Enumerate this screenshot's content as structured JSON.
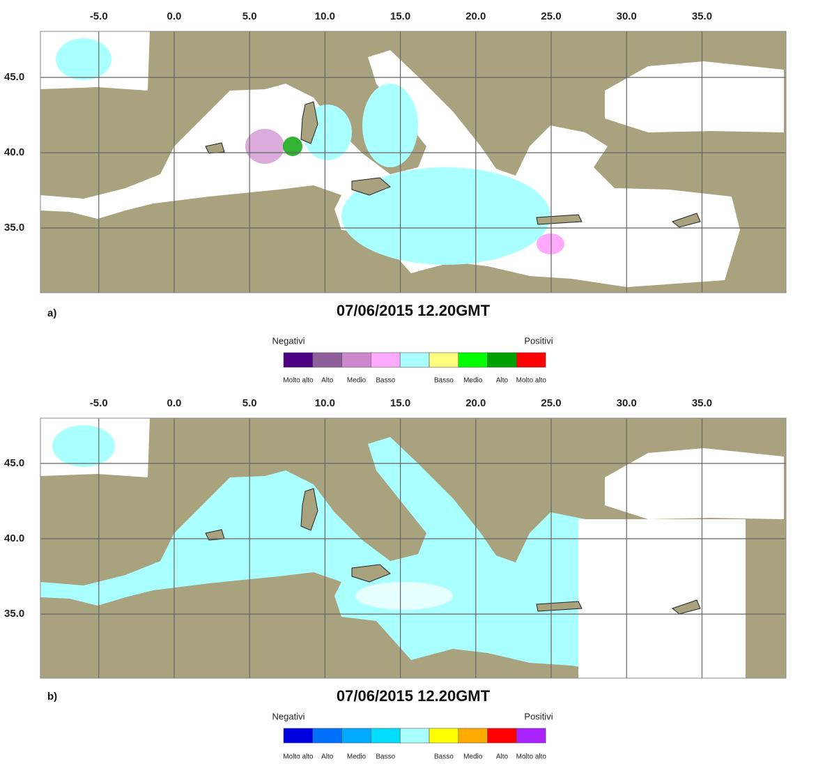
{
  "panels": [
    {
      "label": "a)",
      "title": "07/06/2015 12.20GMT",
      "xlim": [
        -8.87,
        40.57
      ],
      "ylim": [
        30.7,
        48.06
      ],
      "xticks": [
        {
          "value": -5,
          "label": "-5.0"
        },
        {
          "value": 0,
          "label": "0.0"
        },
        {
          "value": 5,
          "label": "5.0"
        },
        {
          "value": 10,
          "label": "10.0"
        },
        {
          "value": 15,
          "label": "15.0"
        },
        {
          "value": 20,
          "label": "20.0"
        },
        {
          "value": 25,
          "label": "25.0"
        },
        {
          "value": 30,
          "label": "30.0"
        },
        {
          "value": 35,
          "label": "35.0"
        }
      ],
      "yticks": [
        {
          "value": 35,
          "label": "35.0"
        },
        {
          "value": 40,
          "label": "40.0"
        },
        {
          "value": 45,
          "label": "45.0"
        }
      ],
      "legend": {
        "left": "Negativi",
        "right": "Positivi",
        "items": [
          {
            "color": "#4b0082",
            "label": "Molto alto"
          },
          {
            "color": "#8e5f9a",
            "label": "Alto"
          },
          {
            "color": "#cc88cc",
            "label": "Medio"
          },
          {
            "color": "#ffaaff",
            "label": "Basso"
          },
          {
            "color": "#aaffff"
          },
          {
            "color": "#ffff80",
            "label": "Basso"
          },
          {
            "color": "#00ff00",
            "label": "Medio"
          },
          {
            "color": "#00a000",
            "label": "Alto"
          },
          {
            "color": "#ff0000",
            "label": "Molto alto"
          }
        ]
      }
    },
    {
      "label": "b)",
      "title": "07/06/2015 12.20GMT",
      "xlim": [
        -8.87,
        40.57
      ],
      "ylim": [
        30.75,
        48.0
      ],
      "xticks": [
        {
          "value": -5,
          "label": "-5.0"
        },
        {
          "value": 0,
          "label": "0.0"
        },
        {
          "value": 5,
          "label": "5.0"
        },
        {
          "value": 10,
          "label": "10.0"
        },
        {
          "value": 15,
          "label": "15.0"
        },
        {
          "value": 20,
          "label": "20.0"
        },
        {
          "value": 25,
          "label": "25.0"
        },
        {
          "value": 30,
          "label": "30.0"
        },
        {
          "value": 35,
          "label": "35.0"
        }
      ],
      "yticks": [
        {
          "value": 35,
          "label": "35.0"
        },
        {
          "value": 40,
          "label": "40.0"
        },
        {
          "value": 45,
          "label": "45.0"
        }
      ],
      "legend": {
        "left": "Negativi",
        "right": "Positivi",
        "items": [
          {
            "color": "#0000e0",
            "label": "Molto alto"
          },
          {
            "color": "#0070ff",
            "label": "Alto"
          },
          {
            "color": "#00aaff",
            "label": "Medio"
          },
          {
            "color": "#00ddff",
            "label": "Basso"
          },
          {
            "color": "#aaffff"
          },
          {
            "color": "#ffff00",
            "label": "Basso"
          },
          {
            "color": "#ffaa00",
            "label": "Medio"
          },
          {
            "color": "#ff0000",
            "label": "Alto"
          },
          {
            "color": "#aa22ff",
            "label": "Molto alto"
          }
        ]
      }
    }
  ]
}
